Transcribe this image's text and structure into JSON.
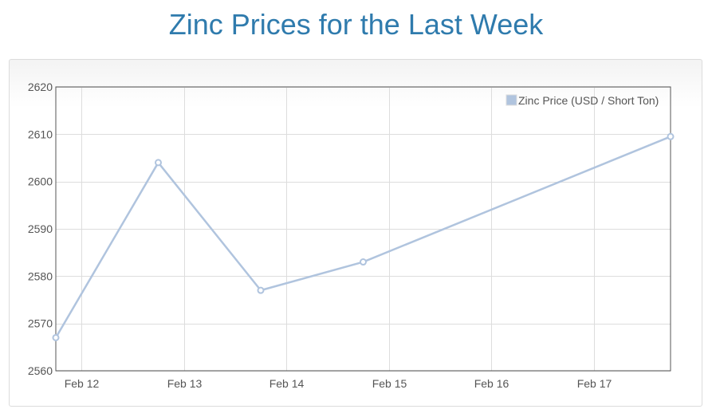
{
  "page": {
    "title": "Zinc Prices for the Last Week"
  },
  "chart_data": {
    "type": "line",
    "title": "Zinc Prices for the Last Week",
    "xlabel": "",
    "ylabel": "",
    "x": [
      "Feb 11 18:00",
      "Feb 12 18:00",
      "Feb 13 18:00",
      "Feb 14 18:00",
      "Feb 17 18:00"
    ],
    "xlim": [
      "Feb 11 18:00",
      "Feb 17 18:00"
    ],
    "x_ticks": [
      "Feb 12",
      "Feb 13",
      "Feb 14",
      "Feb 15",
      "Feb 16",
      "Feb 17"
    ],
    "series": [
      {
        "name": "Zinc Price (USD / Short Ton)",
        "values": [
          2567,
          2604,
          2577,
          2583,
          2609.5
        ],
        "color": "#b0c4de"
      }
    ],
    "ylim": [
      2560,
      2620
    ],
    "y_ticks": [
      2560,
      2570,
      2580,
      2590,
      2600,
      2610,
      2620
    ],
    "grid": true,
    "legend": "top-right"
  }
}
